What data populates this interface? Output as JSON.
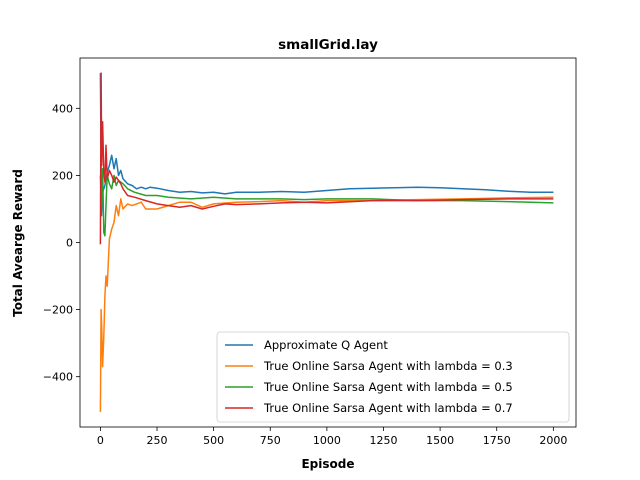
{
  "chart_data": {
    "type": "line",
    "title": "smallGrid.lay",
    "xlabel": "Episode",
    "ylabel": "Total Avearge Reward",
    "xlim": [
      -90,
      2100
    ],
    "ylim": [
      -550,
      550
    ],
    "xticks": [
      0,
      250,
      500,
      750,
      1000,
      1250,
      1500,
      1750,
      2000
    ],
    "yticks": [
      -400,
      -200,
      0,
      200,
      400
    ],
    "grid": false,
    "legend_position": "lower-right",
    "series": [
      {
        "name": "Approximate Q Agent",
        "color": "#1f77b4",
        "x": [
          0,
          5,
          10,
          20,
          30,
          40,
          50,
          60,
          70,
          80,
          90,
          100,
          120,
          140,
          160,
          180,
          200,
          220,
          250,
          300,
          350,
          400,
          450,
          500,
          550,
          600,
          700,
          800,
          900,
          1000,
          1100,
          1200,
          1300,
          1400,
          1500,
          1600,
          1700,
          1800,
          1900,
          2000
        ],
        "y": [
          505,
          80,
          150,
          170,
          210,
          230,
          260,
          220,
          250,
          200,
          215,
          190,
          175,
          170,
          160,
          165,
          160,
          165,
          162,
          155,
          150,
          152,
          148,
          150,
          145,
          150,
          150,
          152,
          150,
          155,
          160,
          162,
          163,
          165,
          163,
          160,
          157,
          153,
          150,
          150
        ]
      },
      {
        "name": "True Online Sarsa Agent with lambda = 0.3",
        "color": "#ff7f0e",
        "x": [
          0,
          3,
          6,
          10,
          15,
          20,
          25,
          30,
          40,
          50,
          60,
          70,
          80,
          90,
          100,
          120,
          140,
          160,
          180,
          200,
          250,
          300,
          350,
          400,
          450,
          500,
          600,
          700,
          800,
          900,
          1000,
          1200,
          1400,
          1600,
          1800,
          2000
        ],
        "y": [
          -505,
          -200,
          -250,
          -370,
          -280,
          -160,
          -100,
          -130,
          10,
          40,
          60,
          110,
          80,
          130,
          100,
          115,
          110,
          115,
          120,
          100,
          100,
          110,
          120,
          120,
          105,
          115,
          120,
          122,
          125,
          120,
          125,
          125,
          128,
          130,
          133,
          135
        ]
      },
      {
        "name": "True Online Sarsa Agent with lambda = 0.5",
        "color": "#2ca02c",
        "x": [
          0,
          5,
          10,
          15,
          20,
          25,
          30,
          40,
          50,
          60,
          70,
          80,
          90,
          100,
          120,
          150,
          200,
          250,
          300,
          400,
          500,
          600,
          700,
          800,
          900,
          1000,
          1200,
          1400,
          1600,
          1800,
          2000
        ],
        "y": [
          200,
          110,
          220,
          30,
          20,
          110,
          200,
          175,
          160,
          200,
          170,
          185,
          180,
          175,
          160,
          150,
          140,
          140,
          135,
          130,
          135,
          130,
          130,
          130,
          128,
          130,
          130,
          125,
          125,
          122,
          118
        ]
      },
      {
        "name": "True Online Sarsa Agent with lambda = 0.7",
        "color": "#d62728",
        "x": [
          0,
          3,
          6,
          10,
          15,
          20,
          25,
          30,
          40,
          50,
          60,
          70,
          80,
          90,
          100,
          120,
          150,
          200,
          250,
          300,
          350,
          400,
          450,
          500,
          550,
          600,
          700,
          800,
          900,
          1000,
          1200,
          1400,
          1600,
          1800,
          2000
        ],
        "y": [
          -5,
          505,
          230,
          360,
          210,
          180,
          290,
          190,
          215,
          200,
          180,
          195,
          185,
          175,
          160,
          140,
          135,
          125,
          115,
          110,
          105,
          110,
          100,
          108,
          115,
          113,
          115,
          118,
          120,
          118,
          125,
          125,
          128,
          130,
          130
        ]
      }
    ]
  }
}
